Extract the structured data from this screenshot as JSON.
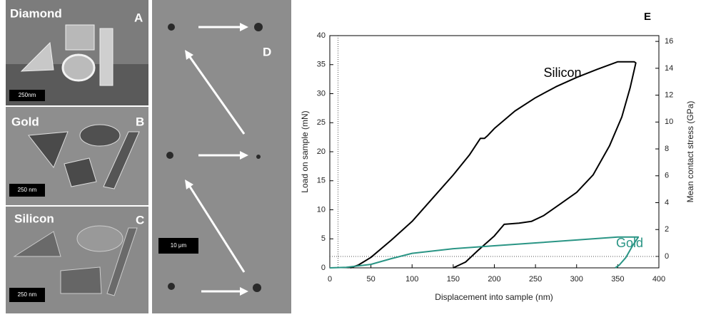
{
  "panels": [
    {
      "title": "Diamond",
      "letter": "A",
      "scale_bar": "250nm"
    },
    {
      "title": "Gold",
      "letter": "B",
      "scale_bar": "250 nm"
    },
    {
      "title": "Silicon",
      "letter": "C",
      "scale_bar": "250 nm"
    },
    {
      "letter": "D",
      "scale_bar": "10 μm"
    }
  ],
  "chart_data": {
    "type": "line",
    "panel_label": "E",
    "x_label": "Displacement into sample (nm)",
    "y_label": "Load on sample (mN)",
    "y2_label": "Mean contact stress (GPa)",
    "xlim": [
      0,
      400
    ],
    "xticks": [
      0,
      50,
      100,
      150,
      200,
      250,
      300,
      350,
      400
    ],
    "ylim": [
      0,
      40
    ],
    "yticks": [
      0,
      5,
      10,
      15,
      20,
      25,
      30,
      35,
      40
    ],
    "y2lim": [
      -0.85,
      16.43
    ],
    "y2ticks": [
      0,
      2,
      4,
      6,
      8,
      10,
      12,
      14,
      16
    ],
    "reference_lines": [
      {
        "axis": "x",
        "value": 10
      },
      {
        "axis": "y2",
        "value": 0
      }
    ],
    "grid": false,
    "series": [
      {
        "name": "Silicon",
        "color": "#000000",
        "x": [
          25,
          35,
          50,
          75,
          100,
          125,
          150,
          170,
          183,
          188,
          192,
          200,
          225,
          250,
          275,
          300,
          325,
          350,
          370,
          372,
          365,
          355,
          340,
          320,
          300,
          280,
          260,
          245,
          230,
          212,
          200,
          180,
          165,
          150
        ],
        "values": [
          0,
          0.5,
          1.8,
          4.8,
          8,
          12,
          16,
          19.5,
          22.3,
          22.3,
          22.8,
          24,
          27,
          29.3,
          31.2,
          32.8,
          34.2,
          35.5,
          35.5,
          35.3,
          31,
          26,
          21,
          16,
          13,
          11,
          9,
          8,
          7.7,
          7.5,
          5.5,
          3,
          1,
          0
        ]
      },
      {
        "name": "Gold",
        "color": "#2a9585",
        "x": [
          0,
          20,
          50,
          75,
          100,
          150,
          200,
          250,
          300,
          350,
          375,
          368,
          360,
          352,
          347
        ],
        "values": [
          0,
          0.1,
          0.6,
          1.6,
          2.5,
          3.3,
          3.8,
          4.3,
          4.8,
          5.3,
          5.3,
          3.8,
          1.8,
          0.5,
          0
        ]
      }
    ]
  }
}
